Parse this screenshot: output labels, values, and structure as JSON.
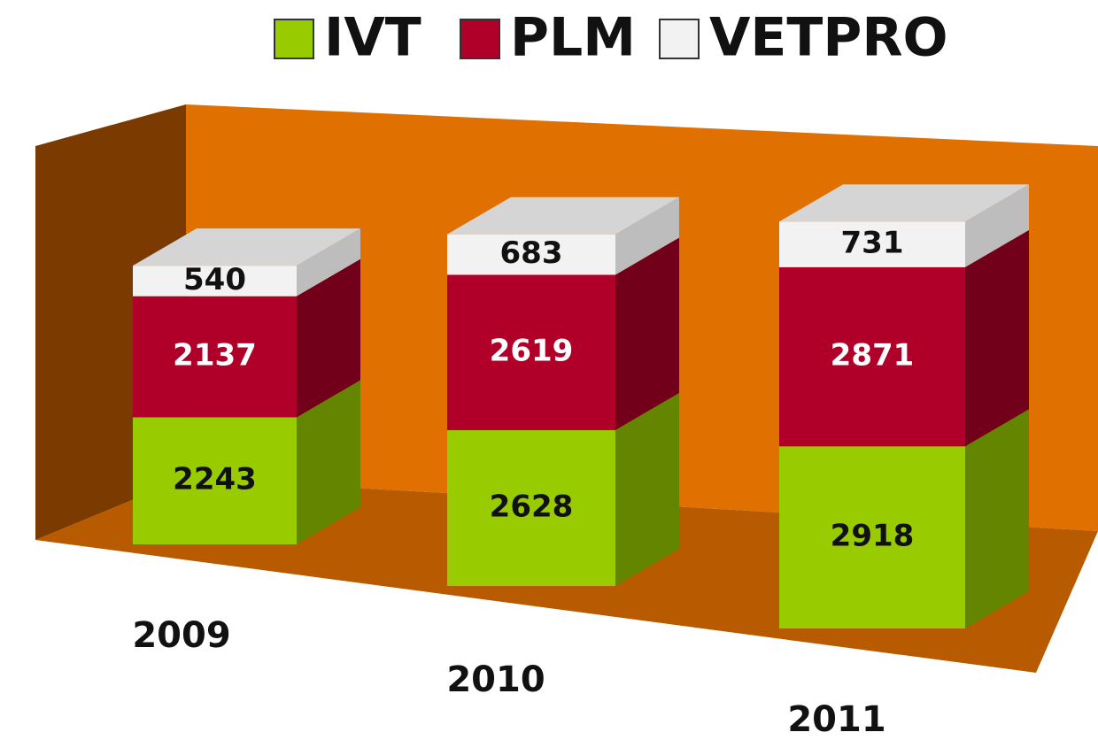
{
  "chart_data": {
    "type": "bar",
    "stacked": true,
    "legend": "top",
    "categories": [
      "2009",
      "2010",
      "2011"
    ],
    "series": [
      {
        "name": "IVT",
        "color": "#99cc00",
        "values": [
          2243,
          2628,
          2918
        ]
      },
      {
        "name": "PLM",
        "color": "#b0002a",
        "values": [
          2137,
          2619,
          2871
        ]
      },
      {
        "name": "VETPRO",
        "color": "#f2f2f2",
        "values": [
          540,
          683,
          731
        ]
      }
    ]
  }
}
